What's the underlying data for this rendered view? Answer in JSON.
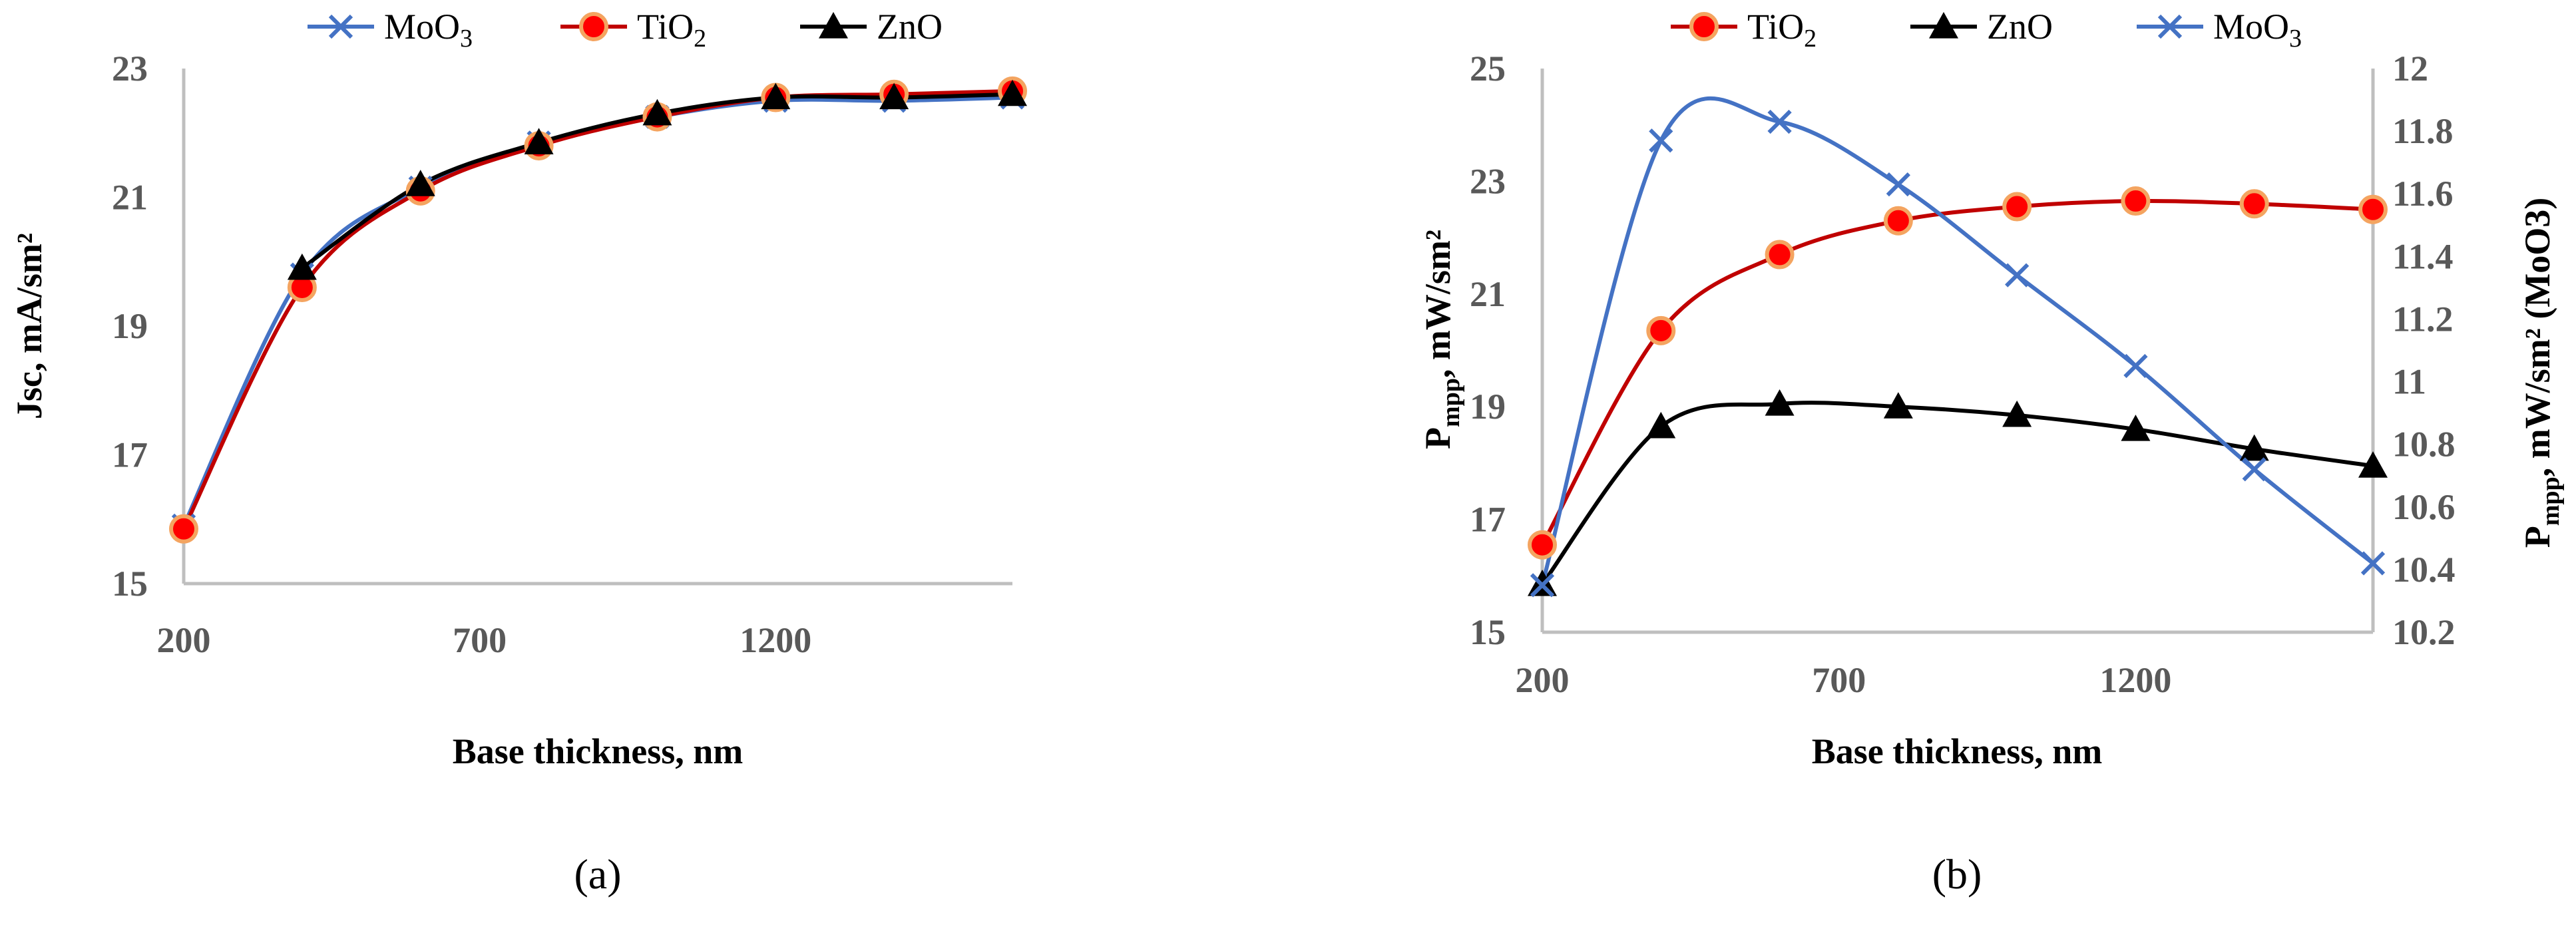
{
  "chart_data": [
    {
      "type": "line",
      "panel_label": "(a)",
      "xlabel": "Base thickness, nm",
      "ylabel": "Jsc, mA/sm²",
      "xlim": [
        200,
        1600
      ],
      "ylim": [
        15,
        23
      ],
      "x_ticks": [
        200,
        700,
        1200
      ],
      "y_ticks": [
        15,
        17,
        19,
        21,
        23
      ],
      "legend_position": "top",
      "x": [
        200,
        400,
        600,
        800,
        1000,
        1200,
        1400,
        1600
      ],
      "series": [
        {
          "name": "MoO3",
          "name_main": "MoO",
          "name_sub": "3",
          "color": "#4472c4",
          "marker": "x",
          "values": [
            15.9,
            19.8,
            21.15,
            21.85,
            22.25,
            22.5,
            22.5,
            22.55
          ]
        },
        {
          "name": "TiO2",
          "name_main": "TiO",
          "name_sub": "2",
          "color": "#c00000",
          "marker": "circle",
          "values": [
            15.85,
            19.6,
            21.1,
            21.8,
            22.25,
            22.55,
            22.6,
            22.65
          ]
        },
        {
          "name": "ZnO",
          "name_main": "ZnO",
          "name_sub": "",
          "color": "#000000",
          "marker": "triangle",
          "values": [
            null,
            19.9,
            21.2,
            21.85,
            22.3,
            22.55,
            22.55,
            22.6
          ]
        }
      ]
    },
    {
      "type": "line",
      "panel_label": "(b)",
      "xlabel": "Base thickness, nm",
      "ylabel_main": "P",
      "ylabel_sub": "mpp",
      "ylabel_rest": ", mW/sm²",
      "y2label_main": "P",
      "y2label_sub": "mpp",
      "y2label_rest": ", mW/sm²  (MoO3)",
      "xlim": [
        200,
        1600
      ],
      "ylim": [
        15,
        25
      ],
      "y2lim": [
        10.2,
        12
      ],
      "x_ticks": [
        200,
        700,
        1200
      ],
      "y_ticks": [
        15,
        17,
        19,
        21,
        23,
        25
      ],
      "y2_ticks": [
        "10.2",
        "10.4",
        "10.6",
        "10.8",
        "11",
        "11.2",
        "11.4",
        "11.6",
        "11.8",
        "12"
      ],
      "legend_position": "top",
      "x": [
        200,
        400,
        600,
        800,
        1000,
        1200,
        1400,
        1600
      ],
      "series": [
        {
          "name": "TiO2",
          "name_main": "TiO",
          "name_sub": "2",
          "color": "#c00000",
          "marker": "circle",
          "axis": "left",
          "values": [
            16.55,
            20.35,
            21.7,
            22.3,
            22.55,
            22.65,
            22.6,
            22.5
          ]
        },
        {
          "name": "ZnO",
          "name_main": "ZnO",
          "name_sub": "",
          "color": "#000000",
          "marker": "triangle",
          "axis": "left",
          "values": [
            15.85,
            18.65,
            19.05,
            19.0,
            18.85,
            18.6,
            18.25,
            17.95
          ]
        },
        {
          "name": "MoO3",
          "name_main": "MoO",
          "name_sub": "3",
          "color": "#4472c4",
          "marker": "x",
          "axis": "right",
          "values": [
            10.35,
            11.77,
            11.83,
            11.63,
            11.34,
            11.05,
            10.72,
            10.42
          ]
        }
      ]
    }
  ]
}
